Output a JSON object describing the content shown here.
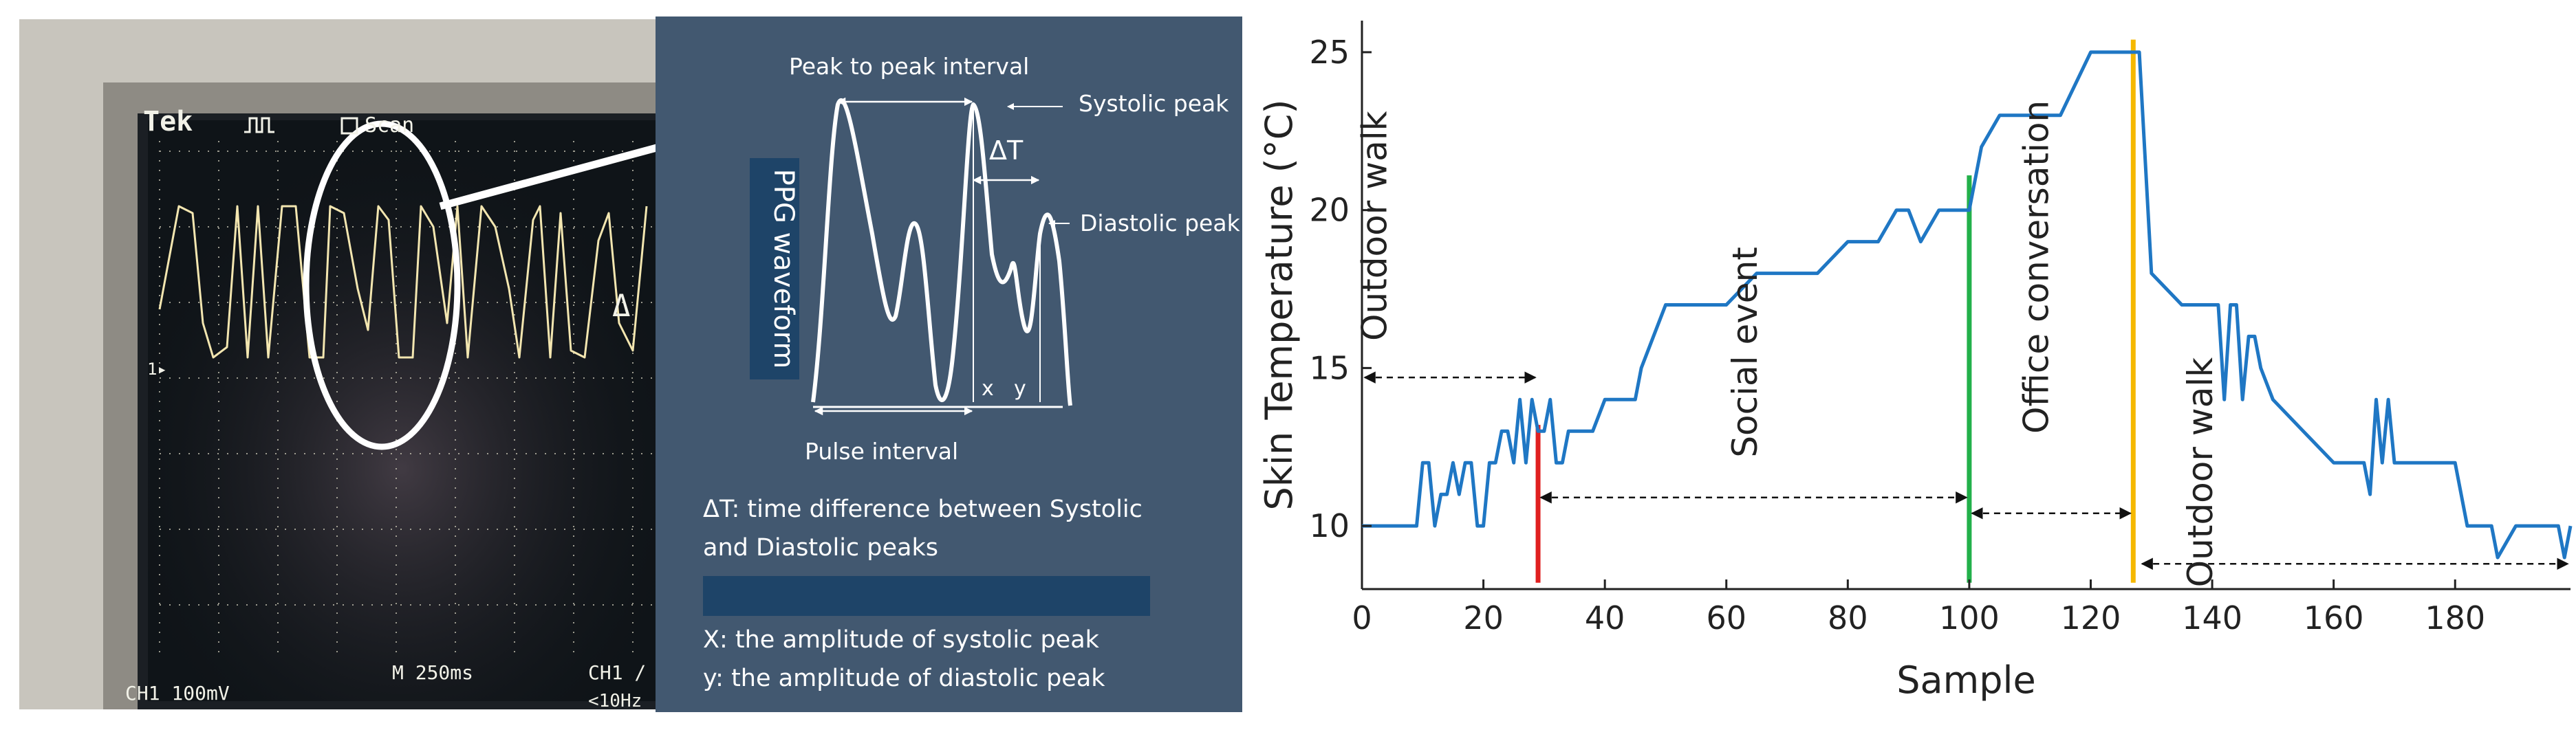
{
  "oscilloscope": {
    "brand": "Tek",
    "mode": "Scan",
    "ch1_scale": "CH1  100mV",
    "timebase": "M 250ms",
    "trigger": "CH1 ∕",
    "filter": "<10Hz",
    "marker": "1▸",
    "edge_label": "Δ"
  },
  "ppg_diagram": {
    "title": "PPG waveform",
    "peak_to_peak": "Peak to peak interval",
    "systolic_peak": "Systolic peak",
    "delta_t": "ΔT",
    "diastolic_peak": "Diastolic peak",
    "pulse_interval": "Pulse interval",
    "x_label": "x",
    "y_label": "y",
    "desc_delta_line1": "ΔT: time difference between Systolic",
    "desc_delta_line2": "and Diastolic peaks",
    "desc_x": "X: the amplitude of systolic peak",
    "desc_y": "y: the amplitude of diastolic peak"
  },
  "colors": {
    "series": "#1f77c4",
    "red_marker": "#e02020",
    "green_marker": "#22b04a",
    "yellow_marker": "#f5b800",
    "panel_bg": "#425870",
    "panel_band": "#1e4468"
  },
  "chart_data": {
    "type": "line",
    "title": "",
    "xlabel": "Sample",
    "ylabel": "Skin Temperature (°C)",
    "xlim": [
      0,
      199
    ],
    "ylim": [
      8,
      26
    ],
    "xticks": [
      0,
      20,
      40,
      60,
      80,
      100,
      120,
      140,
      160,
      180
    ],
    "yticks": [
      10,
      15,
      20,
      25
    ],
    "series": [
      {
        "name": "Skin Temperature",
        "x": [
          0,
          9,
          10,
          11,
          12,
          13,
          14,
          15,
          16,
          17,
          18,
          19,
          20,
          21,
          22,
          23,
          24,
          25,
          26,
          27,
          28,
          29,
          30,
          31,
          32,
          33,
          34,
          35,
          36,
          37,
          38,
          40,
          45,
          46,
          48,
          50,
          55,
          60,
          65,
          70,
          75,
          80,
          85,
          88,
          90,
          92,
          95,
          96,
          98,
          100,
          102,
          105,
          110,
          115,
          120,
          122,
          125,
          127,
          128,
          130,
          135,
          140,
          141,
          142,
          143,
          144,
          145,
          146,
          147,
          148,
          150,
          155,
          160,
          162,
          163,
          165,
          166,
          167,
          168,
          169,
          170,
          172,
          175,
          180,
          182,
          185,
          186,
          187,
          190,
          195,
          196,
          197,
          198,
          199
        ],
        "values": [
          10,
          10,
          12,
          12,
          10,
          11,
          11,
          12,
          11,
          12,
          12,
          10,
          10,
          12,
          12,
          13,
          13,
          12,
          14,
          12,
          14,
          13,
          13,
          14,
          12,
          12,
          13,
          13,
          13,
          13,
          13,
          14,
          14,
          15,
          16,
          17,
          17,
          17,
          18,
          18,
          18,
          19,
          19,
          20,
          20,
          19,
          20,
          20,
          20,
          20,
          22,
          23,
          23,
          23,
          25,
          25,
          25,
          25,
          25,
          18,
          17,
          17,
          17,
          14,
          17,
          17,
          14,
          16,
          16,
          15,
          14,
          13,
          12,
          12,
          12,
          12,
          11,
          14,
          12,
          14,
          12,
          12,
          12,
          12,
          10,
          10,
          10,
          9,
          10,
          10,
          10,
          10,
          9,
          10
        ]
      }
    ],
    "vertical_markers": [
      {
        "x": 29,
        "color_key": "red_marker",
        "y_from": 8.2,
        "y_to": 13.2
      },
      {
        "x": 100,
        "color_key": "green_marker",
        "y_from": 8.2,
        "y_to": 21.1
      },
      {
        "x": 127,
        "color_key": "yellow_marker",
        "y_from": 8.2,
        "y_to": 25.4
      }
    ],
    "annotations": [
      {
        "text": "Outdoor walk",
        "x_from": 0,
        "x_to": 29,
        "arrow_y": 14.7,
        "text_x": 4,
        "text_y": 19.5
      },
      {
        "text": "Social event",
        "x_from": 29,
        "x_to": 100,
        "arrow_y": 10.9,
        "text_x": 65,
        "text_y": 15.5
      },
      {
        "text": "Office conversation",
        "x_from": 100,
        "x_to": 127,
        "arrow_y": 10.4,
        "text_x": 113,
        "text_y": 18.2
      },
      {
        "text": "Outdoor walk",
        "x_from": 128,
        "x_to": 199,
        "arrow_y": 8.8,
        "text_x": 140,
        "text_y": 11.7
      }
    ]
  }
}
